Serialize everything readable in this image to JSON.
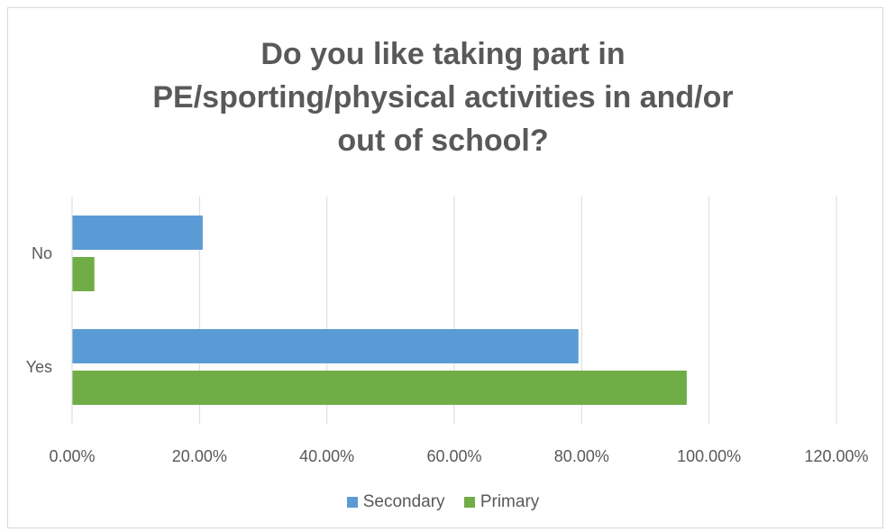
{
  "chart_data": {
    "type": "bar",
    "orientation": "horizontal",
    "title_lines": [
      "Do you like taking part in",
      "PE/sporting/physical activities in and/or",
      "out of school?"
    ],
    "categories": [
      "No",
      "Yes"
    ],
    "series": [
      {
        "name": "Secondary",
        "color": "#5b9bd5",
        "values": [
          0.205,
          0.795
        ]
      },
      {
        "name": "Primary",
        "color": "#70ad47",
        "values": [
          0.035,
          0.965
        ]
      }
    ],
    "xlim": [
      0,
      1.2
    ],
    "xticks": [
      0,
      0.2,
      0.4,
      0.6,
      0.8,
      1.0,
      1.2
    ],
    "xtick_labels": [
      "0.00%",
      "20.00%",
      "40.00%",
      "60.00%",
      "80.00%",
      "100.00%",
      "120.00%"
    ],
    "grid": true,
    "legend_position": "bottom"
  }
}
